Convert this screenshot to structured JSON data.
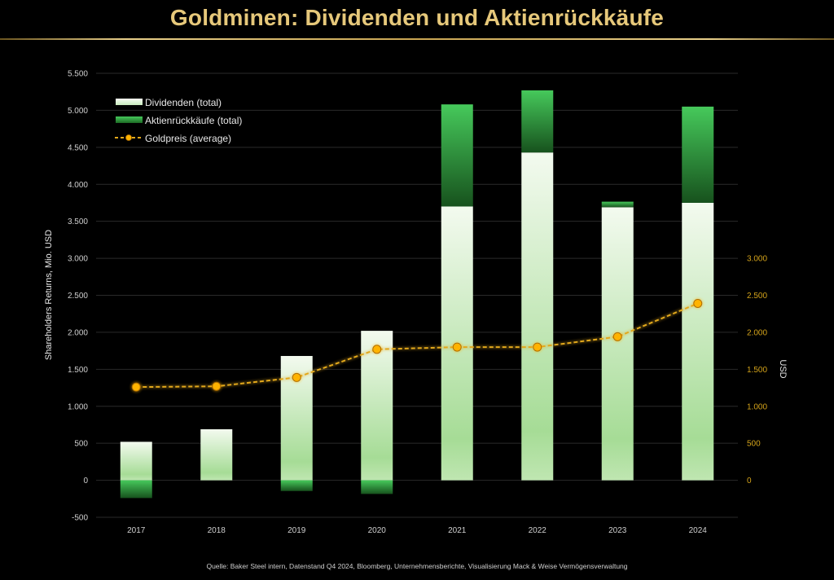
{
  "header": {
    "title": "Goldminen: Dividenden und Aktienrückkäufe"
  },
  "footer": {
    "source": "Quelle: Baker Steel intern, Datenstand Q4 2024, Bloomberg, Unternehmensberichte, Visualisierung Mack & Weise Vermögensverwaltung"
  },
  "colors": {
    "title": "#e6c87a",
    "dividend_top": "#f3faef",
    "dividend_bottom": "#a6dc96",
    "buyback_top": "#46c95b",
    "buyback_bottom": "#17521d",
    "gold_line": "#e2a81c",
    "gold_marker": "#ffb300",
    "right_axis": "#d4a31a",
    "grid": "#2a2a2a"
  },
  "chart_data": {
    "type": "bar",
    "stacked": true,
    "title": "Goldminen: Dividenden und Aktienrückkäufe",
    "categories": [
      "2017",
      "2018",
      "2019",
      "2020",
      "2021",
      "2022",
      "2023",
      "2024"
    ],
    "series": [
      {
        "name": "Dividenden (total)",
        "type": "bar",
        "axis": "left",
        "values": [
          520,
          690,
          1680,
          2020,
          3700,
          4430,
          3690,
          3750
        ]
      },
      {
        "name": "Aktienrückkäufe (total)",
        "type": "bar",
        "axis": "left",
        "values": [
          -240,
          0,
          -145,
          -185,
          1380,
          840,
          75,
          1300
        ]
      },
      {
        "name": "Goldpreis (average)",
        "type": "line",
        "axis": "right",
        "values": [
          1260,
          1270,
          1390,
          1770,
          1800,
          1800,
          1940,
          2390
        ]
      }
    ],
    "ylabel": "Shareholders Returns, Mio. USD",
    "ylim": [
      -500,
      5500
    ],
    "yticks": [
      -500,
      0,
      500,
      1000,
      1500,
      2000,
      2500,
      3000,
      3500,
      4000,
      4500,
      5000,
      5500
    ],
    "ytick_labels": [
      "-500",
      "0",
      "500",
      "1.000",
      "1.500",
      "2.000",
      "2.500",
      "3.000",
      "3.500",
      "4.000",
      "4.500",
      "5.000",
      "5.500"
    ],
    "y2label": "USD",
    "y2lim": [
      -500,
      5500
    ],
    "y2ticks": [
      0,
      500,
      1000,
      1500,
      2000,
      2500,
      3000
    ],
    "y2tick_labels": [
      "0",
      "500",
      "1.000",
      "1.500",
      "2.000",
      "2.500",
      "3.000"
    ],
    "grid": true,
    "legend": {
      "position": "top-left",
      "entries": [
        "Dividenden (total)",
        "Aktienrückkäufe (total)",
        "Goldpreis (average)"
      ]
    }
  }
}
